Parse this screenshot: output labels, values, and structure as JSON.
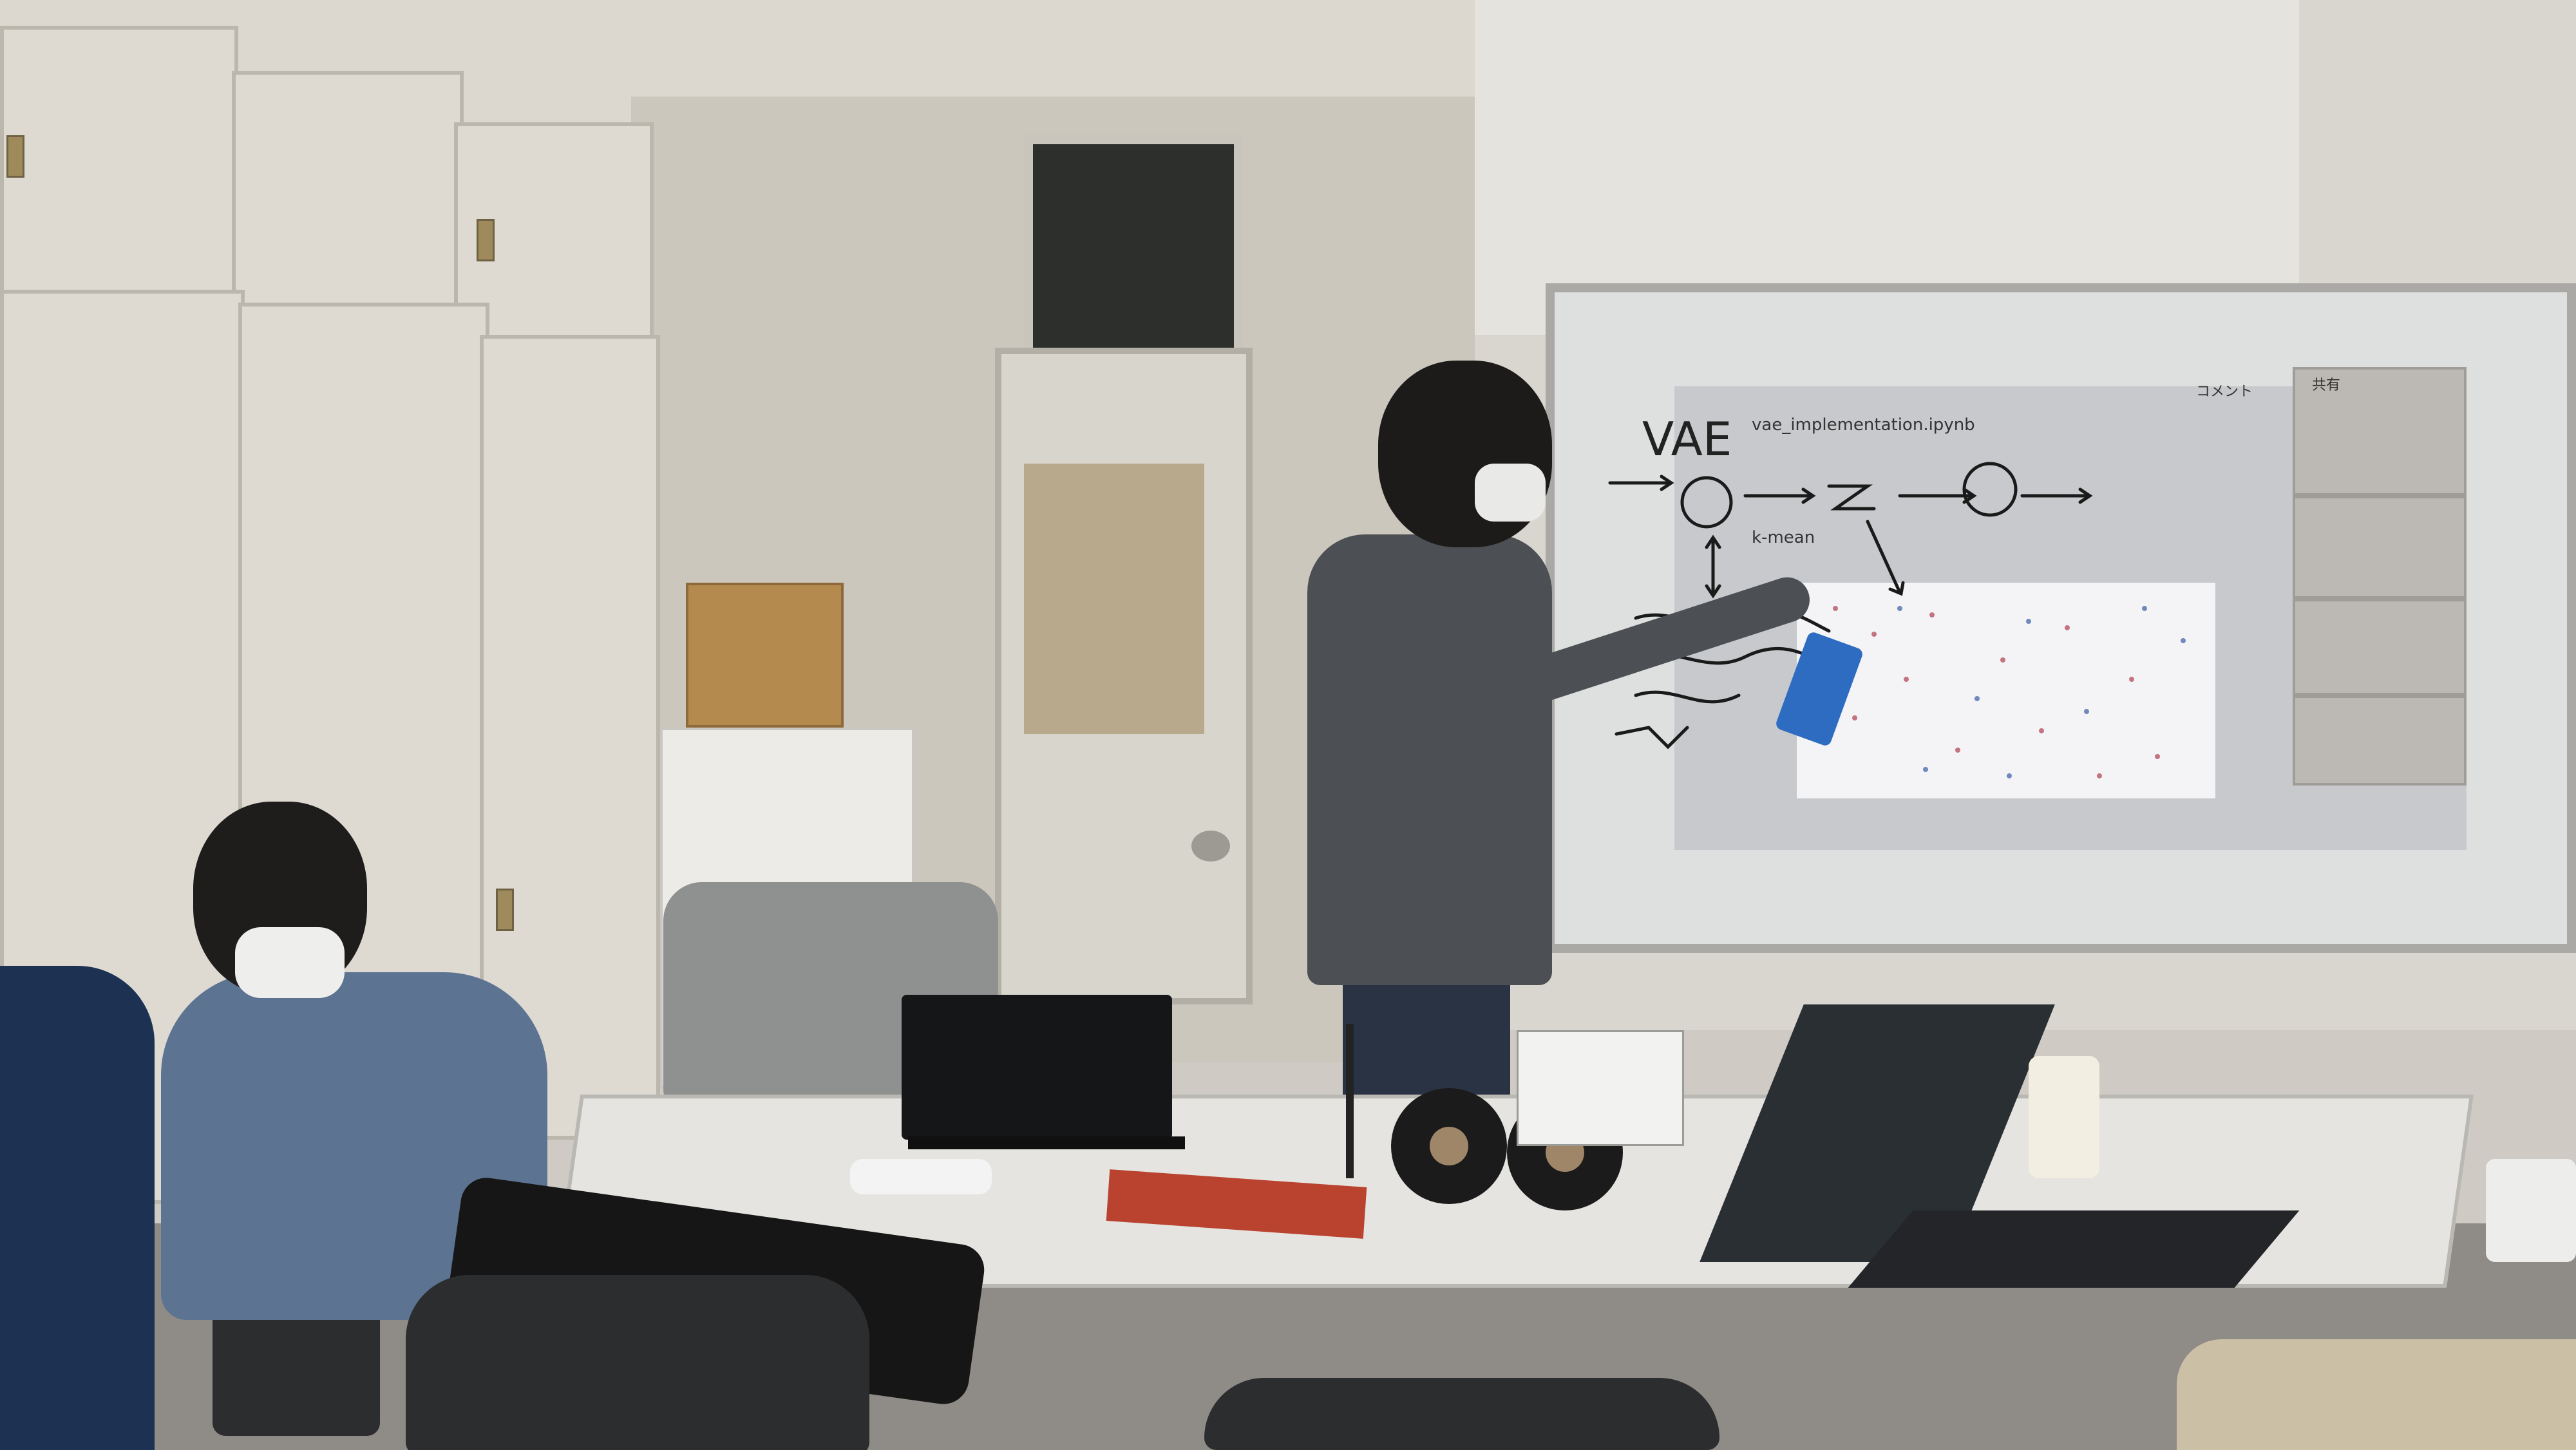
{
  "scene": {
    "type": "photo",
    "description_visible_text": {
      "whiteboard_handwriting_title": "VAE",
      "notebook_filename": "vae_implementation.ipynb",
      "section_fragment": "k-mean",
      "comment_label": "コメント",
      "share_label": "共有"
    },
    "colors": {
      "whiteboard": "#dedfdf",
      "projection": "#c7c9cc",
      "plot_bg": "#f4f4f6",
      "presenter_hoodie": "#4c4f53",
      "seated_hoodie": "#5c7391",
      "eraser": "#2d6cc0",
      "table": "#e5e4e1"
    },
    "icons": {
      "speakers": "speaker-icon",
      "laptop_left": "laptop-icon",
      "laptop_right": "laptop-icon",
      "sanitizer": "bottle-icon",
      "phone": "phone-icon"
    }
  }
}
